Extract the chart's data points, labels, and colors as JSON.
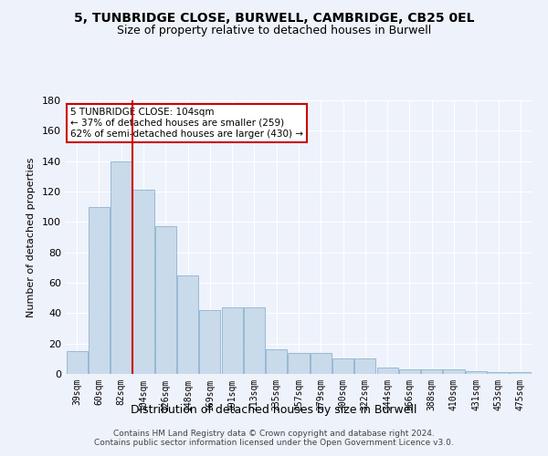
{
  "title": "5, TUNBRIDGE CLOSE, BURWELL, CAMBRIDGE, CB25 0EL",
  "subtitle": "Size of property relative to detached houses in Burwell",
  "xlabel": "Distribution of detached houses by size in Burwell",
  "ylabel": "Number of detached properties",
  "bar_color": "#c9daea",
  "bar_edge_color": "#7aaac8",
  "background_color": "#eef2fb",
  "grid_color": "#ffffff",
  "bins": [
    "39sqm",
    "60sqm",
    "82sqm",
    "104sqm",
    "126sqm",
    "148sqm",
    "169sqm",
    "191sqm",
    "213sqm",
    "235sqm",
    "257sqm",
    "279sqm",
    "300sqm",
    "322sqm",
    "344sqm",
    "366sqm",
    "388sqm",
    "410sqm",
    "431sqm",
    "453sqm",
    "475sqm"
  ],
  "counts": [
    15,
    110,
    140,
    121,
    97,
    65,
    42,
    44,
    44,
    16,
    14,
    14,
    10,
    10,
    4,
    3,
    3,
    3,
    2,
    1,
    1
  ],
  "ylim": [
    0,
    180
  ],
  "yticks": [
    0,
    20,
    40,
    60,
    80,
    100,
    120,
    140,
    160,
    180
  ],
  "property_bin_index": 3,
  "red_line_color": "#cc0000",
  "annotation_text": "5 TUNBRIDGE CLOSE: 104sqm\n← 37% of detached houses are smaller (259)\n62% of semi-detached houses are larger (430) →",
  "annotation_box_color": "#ffffff",
  "annotation_box_edge": "#cc0000",
  "footer": "Contains HM Land Registry data © Crown copyright and database right 2024.\nContains public sector information licensed under the Open Government Licence v3.0."
}
